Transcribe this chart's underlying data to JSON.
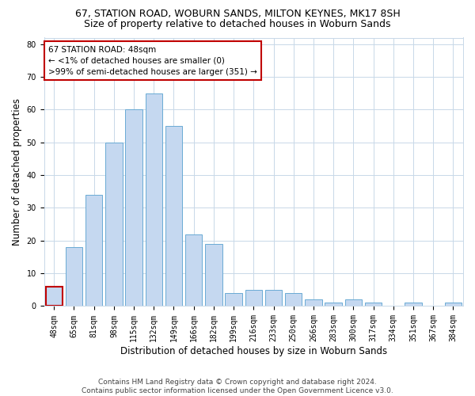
{
  "title_line1": "67, STATION ROAD, WOBURN SANDS, MILTON KEYNES, MK17 8SH",
  "title_line2": "Size of property relative to detached houses in Woburn Sands",
  "xlabel": "Distribution of detached houses by size in Woburn Sands",
  "ylabel": "Number of detached properties",
  "categories": [
    "48sqm",
    "65sqm",
    "81sqm",
    "98sqm",
    "115sqm",
    "132sqm",
    "149sqm",
    "166sqm",
    "182sqm",
    "199sqm",
    "216sqm",
    "233sqm",
    "250sqm",
    "266sqm",
    "283sqm",
    "300sqm",
    "317sqm",
    "334sqm",
    "351sqm",
    "367sqm",
    "384sqm"
  ],
  "values": [
    6,
    18,
    34,
    50,
    60,
    65,
    55,
    22,
    19,
    4,
    5,
    5,
    4,
    2,
    1,
    2,
    1,
    0,
    1,
    0,
    1
  ],
  "bar_color": "#c5d8f0",
  "bar_edge_color": "#6aaad4",
  "highlight_bar_index": 0,
  "highlight_edge_color": "#c00000",
  "annotation_text": "67 STATION ROAD: 48sqm\n← <1% of detached houses are smaller (0)\n>99% of semi-detached houses are larger (351) →",
  "annotation_box_color": "#ffffff",
  "annotation_box_edge_color": "#c00000",
  "ylim": [
    0,
    82
  ],
  "yticks": [
    0,
    10,
    20,
    30,
    40,
    50,
    60,
    70,
    80
  ],
  "footer_line1": "Contains HM Land Registry data © Crown copyright and database right 2024.",
  "footer_line2": "Contains public sector information licensed under the Open Government Licence v3.0.",
  "bg_color": "#ffffff",
  "grid_color": "#c8d8e8",
  "title_fontsize": 9,
  "subtitle_fontsize": 9,
  "axis_label_fontsize": 8.5,
  "tick_fontsize": 7,
  "footer_fontsize": 6.5,
  "annotation_fontsize": 7.5
}
